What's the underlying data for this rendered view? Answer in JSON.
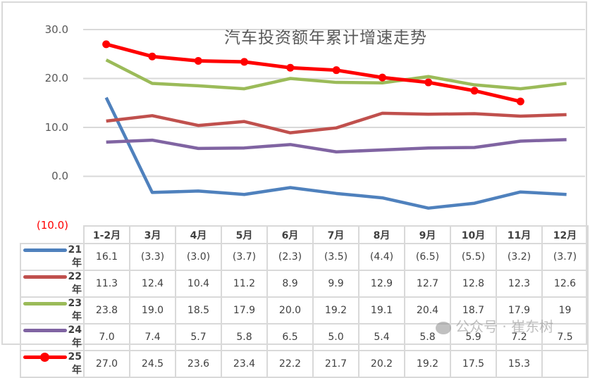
{
  "chart_data": {
    "type": "line",
    "title": "汽车投资额年累计增速走势",
    "xlabel": "",
    "ylabel": "",
    "ylim": [
      -10,
      30
    ],
    "yticks": [
      "30.0",
      "20.0",
      "10.0",
      "0.0",
      "(10.0)"
    ],
    "grid": true,
    "legend_position": "data-table-left",
    "categories": [
      "1-2月",
      "3月",
      "4月",
      "5月",
      "6月",
      "7月",
      "8月",
      "9月",
      "10月",
      "11月",
      "12月"
    ],
    "series": [
      {
        "name": "21年",
        "color": "#4f81bd",
        "values": [
          16.1,
          -3.3,
          -3.0,
          -3.7,
          -2.3,
          -3.5,
          -4.4,
          -6.5,
          -5.5,
          -3.2,
          -3.7
        ],
        "labels": [
          "16.1",
          "(3.3)",
          "(3.0)",
          "(3.7)",
          "(2.3)",
          "(3.5)",
          "(4.4)",
          "(6.5)",
          "(5.5)",
          "(3.2)",
          "(3.7)"
        ]
      },
      {
        "name": "22年",
        "color": "#c0504d",
        "values": [
          11.3,
          12.4,
          10.4,
          11.2,
          8.9,
          9.9,
          12.9,
          12.7,
          12.8,
          12.3,
          12.6
        ],
        "labels": [
          "11.3",
          "12.4",
          "10.4",
          "11.2",
          "8.9",
          "9.9",
          "12.9",
          "12.7",
          "12.8",
          "12.3",
          "12.6"
        ]
      },
      {
        "name": "23年",
        "color": "#9bbb59",
        "values": [
          23.8,
          19.0,
          18.5,
          17.9,
          20.0,
          19.2,
          19.1,
          20.4,
          18.7,
          17.9,
          19
        ],
        "labels": [
          "23.8",
          "19.0",
          "18.5",
          "17.9",
          "20.0",
          "19.2",
          "19.1",
          "20.4",
          "18.7",
          "17.9",
          "19"
        ]
      },
      {
        "name": "24年",
        "color": "#8064a2",
        "values": [
          7.0,
          7.4,
          5.7,
          5.8,
          6.5,
          5.0,
          5.4,
          5.8,
          5.9,
          7.2,
          7.5
        ],
        "labels": [
          "7.0",
          "7.4",
          "5.7",
          "5.8",
          "6.5",
          "5.0",
          "5.4",
          "5.8",
          "5.9",
          "7.2",
          "7.5"
        ]
      },
      {
        "name": "25年",
        "color": "#ff0000",
        "marker": "circle",
        "values": [
          27.0,
          24.5,
          23.6,
          23.4,
          22.2,
          21.7,
          20.2,
          19.2,
          17.5,
          15.3,
          null
        ],
        "labels": [
          "27.0",
          "24.5",
          "23.6",
          "23.4",
          "22.2",
          "21.7",
          "20.2",
          "19.2",
          "17.5",
          "15.3",
          ""
        ]
      }
    ]
  },
  "watermark": "公众号 · 崔东树"
}
